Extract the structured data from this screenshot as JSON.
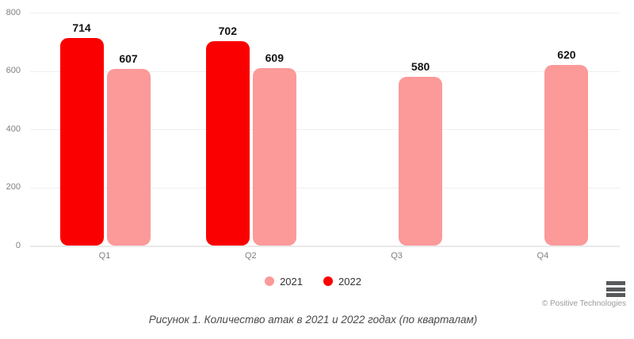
{
  "chart_data": {
    "type": "bar",
    "title": "",
    "categories": [
      "Q1",
      "Q2",
      "Q3",
      "Q4"
    ],
    "series": [
      {
        "name": "2022",
        "color": "#fa0000",
        "values": [
          714,
          702,
          null,
          null
        ]
      },
      {
        "name": "2021",
        "color": "#fc9999",
        "values": [
          607,
          609,
          580,
          620
        ]
      }
    ],
    "ylim": [
      0,
      800
    ],
    "yticks": [
      0,
      200,
      400,
      600,
      800
    ],
    "grid": true,
    "legend_position": "bottom",
    "legend": [
      {
        "label": "2021",
        "color": "#fc9999"
      },
      {
        "label": "2022",
        "color": "#fa0000"
      }
    ]
  },
  "colors": {
    "red_2022": "#fa0000",
    "pink_2021": "#fc9999",
    "gridline": "#efefef",
    "axis_text": "#808080",
    "value_text": "#141414"
  },
  "credits": "© Positive Technologies",
  "caption": "Рисунок 1. Количество атак в 2021 и 2022 годах (по кварталам)",
  "icons": {
    "menu": "hamburger-menu-icon"
  }
}
